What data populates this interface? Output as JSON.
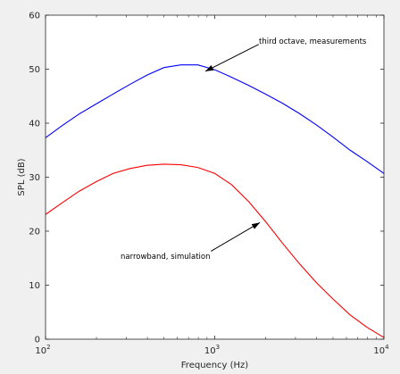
{
  "chart_data": {
    "type": "line",
    "title": "",
    "xlabel": "Frequency (Hz)",
    "ylabel": "SPL (dB)",
    "xscale": "log",
    "xlim": [
      100,
      10000
    ],
    "ylim": [
      0,
      60
    ],
    "grid": false,
    "x_ticks": [
      {
        "value": 100,
        "base": "10",
        "exp": "2"
      },
      {
        "value": 1000,
        "base": "10",
        "exp": "3"
      },
      {
        "value": 10000,
        "base": "10",
        "exp": "4"
      }
    ],
    "y_ticks": [
      0,
      10,
      20,
      30,
      40,
      50,
      60
    ],
    "series": [
      {
        "color": "#0000ff",
        "x": [
          100,
          126,
          158,
          200,
          251,
          316,
          398,
          501,
          631,
          794,
          1000,
          1259,
          1585,
          1995,
          2512,
          3162,
          3981,
          5012,
          6310,
          7943,
          10000
        ],
        "y": [
          37.3,
          39.6,
          41.7,
          43.6,
          45.4,
          47.2,
          48.9,
          50.3,
          50.8,
          50.8,
          49.9,
          48.5,
          47.0,
          45.4,
          43.7,
          41.8,
          39.7,
          37.4,
          35.0,
          32.9,
          30.7
        ]
      },
      {
        "color": "#ff0000",
        "x": [
          100,
          126,
          158,
          200,
          251,
          316,
          398,
          501,
          631,
          794,
          1000,
          1259,
          1585,
          1995,
          2512,
          3162,
          3981,
          5012,
          6310,
          7943,
          10000
        ],
        "y": [
          23.1,
          25.3,
          27.4,
          29.2,
          30.7,
          31.6,
          32.2,
          32.4,
          32.3,
          31.8,
          30.7,
          28.6,
          25.5,
          21.8,
          17.8,
          14.0,
          10.5,
          7.4,
          4.5,
          2.2,
          0.3
        ]
      }
    ],
    "annotations": [
      {
        "text": "third octave, measurements",
        "arrow_tip": [
          880,
          49.6
        ],
        "arrow_tail": [
          1820,
          54.6
        ]
      },
      {
        "text": "narrowband, simulation",
        "arrow_tip": [
          1850,
          21.6
        ],
        "arrow_tail": [
          950,
          16.3
        ]
      }
    ]
  }
}
